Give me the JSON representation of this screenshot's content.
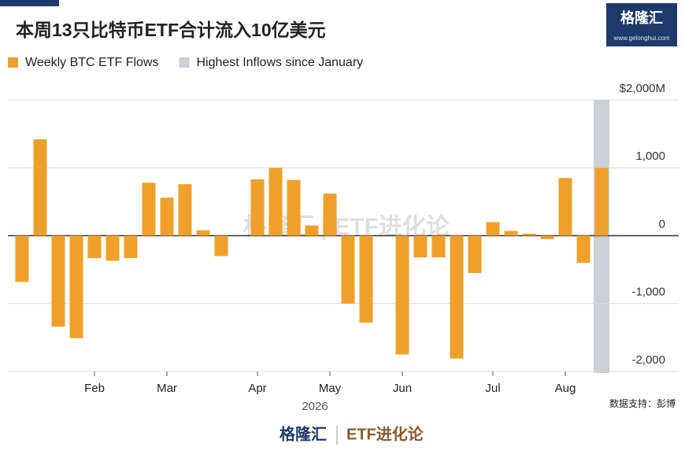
{
  "chart_data": {
    "type": "bar",
    "title": "本周13只比特币ETF合计流入10亿美元",
    "brand": {
      "name": "格隆汇",
      "url": "www.gelonghui.com",
      "column": "ETF进化论"
    },
    "watermark": "格隆汇 | ETF进化论",
    "source": "数据支持：彭博",
    "x_label": "2026",
    "categories": [
      null,
      null,
      null,
      null,
      "Feb",
      null,
      null,
      null,
      "Mar",
      null,
      null,
      null,
      null,
      "Apr",
      null,
      null,
      null,
      "May",
      null,
      null,
      null,
      "Jun",
      null,
      null,
      null,
      null,
      "Jul",
      null,
      null,
      null,
      "Aug",
      null,
      null
    ],
    "series": [
      {
        "name": "Weekly BTC ETF Flows",
        "color": "#efa02a",
        "values": [
          -680,
          1420,
          -1340,
          -1510,
          -330,
          -370,
          -330,
          780,
          560,
          760,
          80,
          -300,
          0,
          830,
          1000,
          820,
          150,
          620,
          -1000,
          -1280,
          0,
          -1750,
          -320,
          -320,
          -1810,
          -550,
          200,
          70,
          30,
          -50,
          850,
          -400,
          1000
        ]
      }
    ],
    "highlight": {
      "name": "Highest Inflows since January",
      "color": "#c9d0d6",
      "index": 32
    },
    "ylim": [
      -2000,
      2000
    ],
    "yticks": [
      {
        "value": 2000,
        "label": "$2,000M"
      },
      {
        "value": 1000,
        "label": "1,000"
      },
      0,
      {
        "value": -1000,
        "label": "-1,000"
      },
      {
        "value": -2000,
        "label": "-2,000"
      }
    ],
    "grid": true
  }
}
